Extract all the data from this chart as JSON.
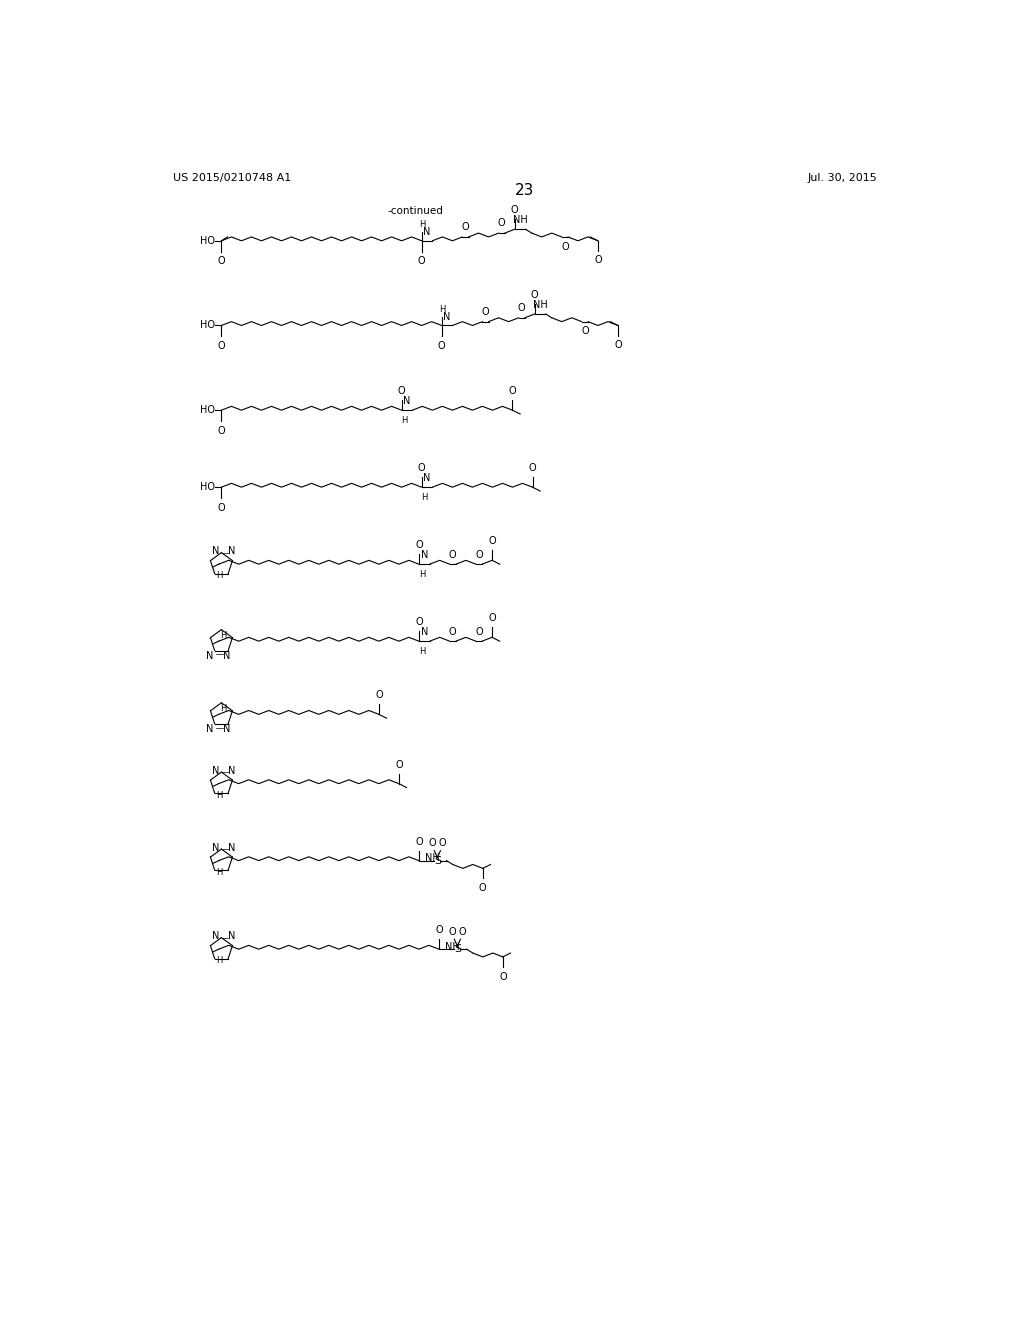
{
  "background_color": "#ffffff",
  "page_number": "23",
  "patent_left": "US 2015/0210748 A1",
  "patent_right": "Jul. 30, 2015",
  "continued_label": "-continued",
  "line_color": "#000000",
  "line_width": 0.8
}
